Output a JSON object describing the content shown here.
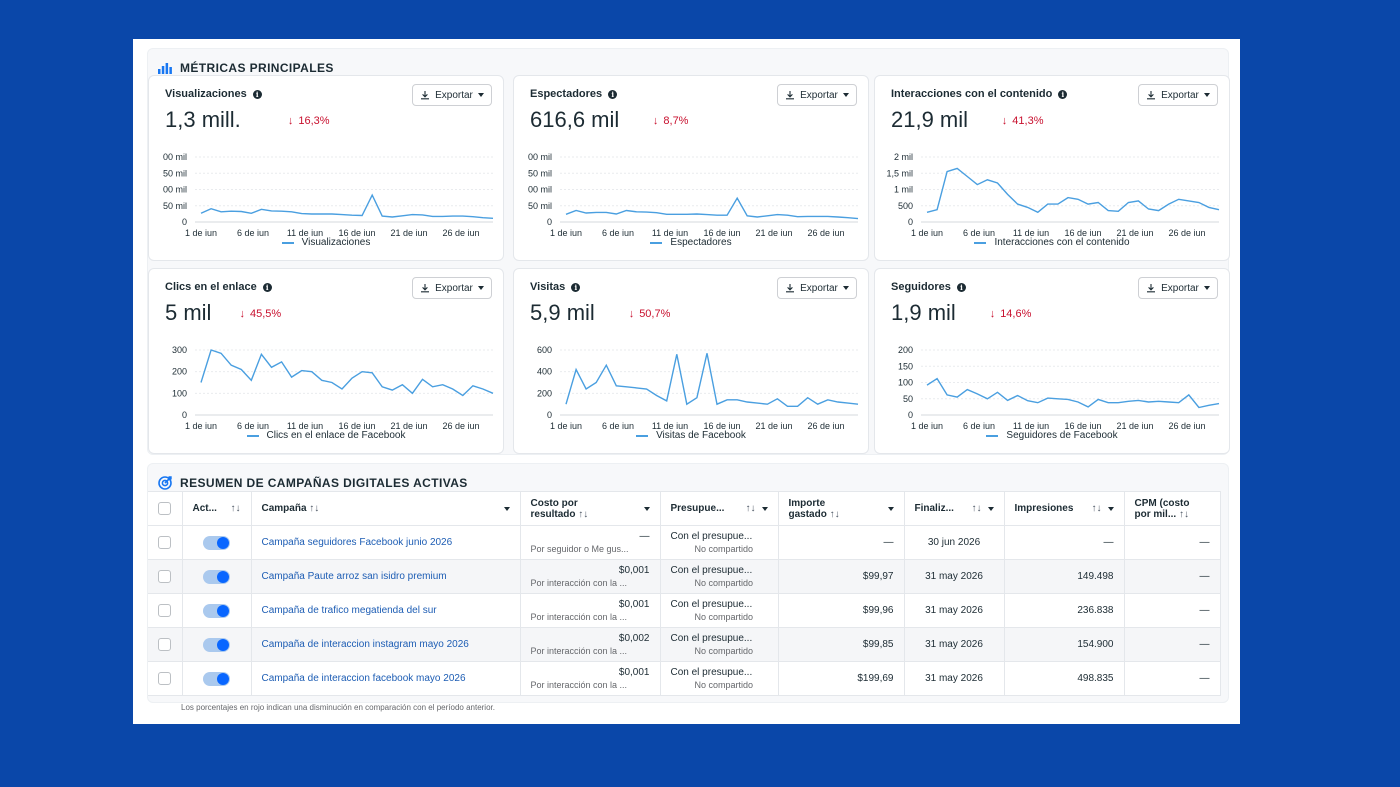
{
  "metrics_section": {
    "title": "MÉTRICAS PRINCIPALES",
    "icon": "bar-chart-icon"
  },
  "export_label": "Exportar",
  "x_ticks": [
    "1 de jun",
    "6 de jun",
    "11 de jun",
    "16 de jun",
    "21 de jun",
    "26 de jun"
  ],
  "cards": [
    {
      "title": "Visualizaciones",
      "value": "1,3 mill.",
      "change": "16,3%",
      "legend": "Visualizaciones",
      "y_ticks": [
        "00 mil",
        "50 mil",
        "00 mil",
        "50 mil",
        "0"
      ]
    },
    {
      "title": "Espectadores",
      "value": "616,6 mil",
      "change": "8,7%",
      "legend": "Espectadores",
      "y_ticks": [
        "00 mil",
        "50 mil",
        "00 mil",
        "50 mil",
        "0"
      ]
    },
    {
      "title": "Interacciones con el contenido",
      "value": "21,9 mil",
      "change": "41,3%",
      "legend": "Interacciones con el contenido",
      "y_ticks": [
        "2 mil",
        "1,5 mil",
        "1 mil",
        "500",
        "0"
      ]
    },
    {
      "title": "Clics en el enlace",
      "value": "5 mil",
      "change": "45,5%",
      "legend": "Clics en el enlace de Facebook",
      "y_ticks": [
        "300",
        "200",
        "100",
        "0"
      ]
    },
    {
      "title": "Visitas",
      "value": "5,9 mil",
      "change": "50,7%",
      "legend": "Visitas de Facebook",
      "y_ticks": [
        "600",
        "400",
        "200",
        "0"
      ]
    },
    {
      "title": "Seguidores",
      "value": "1,9 mil",
      "change": "14,6%",
      "legend": "Seguidores de Facebook",
      "y_ticks": [
        "200",
        "150",
        "100",
        "50",
        "0"
      ]
    }
  ],
  "chart_data": [
    {
      "type": "line",
      "series": [
        {
          "name": "Visualizaciones",
          "values": [
            0.28,
            0.43,
            0.33,
            0.35,
            0.34,
            0.28,
            0.41,
            0.36,
            0.35,
            0.33,
            0.27,
            0.26,
            0.26,
            0.26,
            0.24,
            0.22,
            0.21,
            0.87,
            0.19,
            0.16,
            0.2,
            0.24,
            0.23,
            0.18,
            0.18,
            0.19,
            0.19,
            0.17,
            0.14,
            0.12
          ]
        }
      ]
    },
    {
      "type": "line",
      "series": [
        {
          "name": "Espectadores",
          "values": [
            0.25,
            0.37,
            0.29,
            0.31,
            0.31,
            0.26,
            0.37,
            0.33,
            0.32,
            0.3,
            0.25,
            0.25,
            0.25,
            0.26,
            0.24,
            0.22,
            0.22,
            0.77,
            0.2,
            0.16,
            0.2,
            0.24,
            0.22,
            0.17,
            0.18,
            0.18,
            0.18,
            0.16,
            0.14,
            0.11
          ]
        }
      ]
    },
    {
      "type": "line",
      "series": [
        {
          "name": "Interacciones con el contenido",
          "values": [
            0.3,
            0.38,
            1.55,
            1.65,
            1.4,
            1.15,
            1.3,
            1.2,
            0.85,
            0.55,
            0.45,
            0.3,
            0.55,
            0.55,
            0.75,
            0.7,
            0.55,
            0.6,
            0.35,
            0.33,
            0.6,
            0.65,
            0.4,
            0.35,
            0.55,
            0.7,
            0.65,
            0.6,
            0.45,
            0.38
          ]
        }
      ]
    },
    {
      "type": "line",
      "series": [
        {
          "name": "Clics en el enlace de Facebook",
          "values": [
            150,
            300,
            285,
            230,
            210,
            160,
            280,
            220,
            245,
            175,
            205,
            200,
            160,
            150,
            120,
            170,
            200,
            195,
            130,
            115,
            140,
            100,
            165,
            130,
            140,
            120,
            90,
            135,
            120,
            100
          ]
        }
      ]
    },
    {
      "type": "line",
      "series": [
        {
          "name": "Visitas de Facebook",
          "values": [
            100,
            420,
            240,
            300,
            460,
            270,
            260,
            250,
            240,
            180,
            130,
            560,
            100,
            160,
            570,
            100,
            140,
            140,
            120,
            110,
            100,
            150,
            80,
            80,
            160,
            100,
            140,
            120,
            110,
            100
          ]
        }
      ]
    },
    {
      "type": "line",
      "series": [
        {
          "name": "Seguidores de Facebook",
          "values": [
            92,
            112,
            62,
            55,
            78,
            65,
            50,
            70,
            45,
            60,
            44,
            38,
            52,
            50,
            48,
            40,
            25,
            48,
            38,
            38,
            42,
            45,
            40,
            42,
            40,
            38,
            62,
            23,
            30,
            35
          ]
        }
      ]
    }
  ],
  "campaigns_section": {
    "title": "RESUMEN DE CAMPAÑAS DIGITALES ACTIVAS",
    "icon": "target-icon"
  },
  "table": {
    "headers": {
      "active": "Act...",
      "campaign": "Campaña",
      "cost_line1": "Costo por",
      "cost_line2": "resultado",
      "budget": "Presupue...",
      "spent_line1": "Importe",
      "spent_line2": "gastado",
      "end": "Finaliz...",
      "impressions": "Impresiones",
      "cpm_line1": "CPM (costo",
      "cpm_line2": "por mil..."
    },
    "rows": [
      {
        "campaign": "Campaña seguidores Facebook junio 2026",
        "cost": "—",
        "cost_sub": "Por seguidor o Me gus...",
        "budget": "Con el presupue...",
        "budget_sub": "No compartido",
        "spent": "—",
        "end": "30 jun 2026",
        "impressions": "—",
        "cpm": "—"
      },
      {
        "campaign": "Campaña Paute arroz san isidro premium",
        "cost": "$0,001",
        "cost_sub": "Por interacción con la ...",
        "budget": "Con el presupue...",
        "budget_sub": "No compartido",
        "spent": "$99,97",
        "end": "31 may 2026",
        "impressions": "149.498",
        "cpm": "—"
      },
      {
        "campaign": "Campaña de trafico megatienda del sur",
        "cost": "$0,001",
        "cost_sub": "Por interacción con la ...",
        "budget": "Con el presupue...",
        "budget_sub": "No compartido",
        "spent": "$99,96",
        "end": "31 may 2026",
        "impressions": "236.838",
        "cpm": "—"
      },
      {
        "campaign": "Campaña de interaccion instagram mayo 2026",
        "cost": "$0,002",
        "cost_sub": "Por interacción con la ...",
        "budget": "Con el presupue...",
        "budget_sub": "No compartido",
        "spent": "$99,85",
        "end": "31 may 2026",
        "impressions": "154.900",
        "cpm": "—"
      },
      {
        "campaign": "Campaña de interaccion facebook mayo 2026",
        "cost": "$0,001",
        "cost_sub": "Por interacción con la ...",
        "budget": "Con el presupue...",
        "budget_sub": "No compartido",
        "spent": "$199,69",
        "end": "31 may 2026",
        "impressions": "498.835",
        "cpm": "—"
      }
    ]
  },
  "footnote": "Los porcentajes en rojo indican una disminución en comparación con el período anterior."
}
